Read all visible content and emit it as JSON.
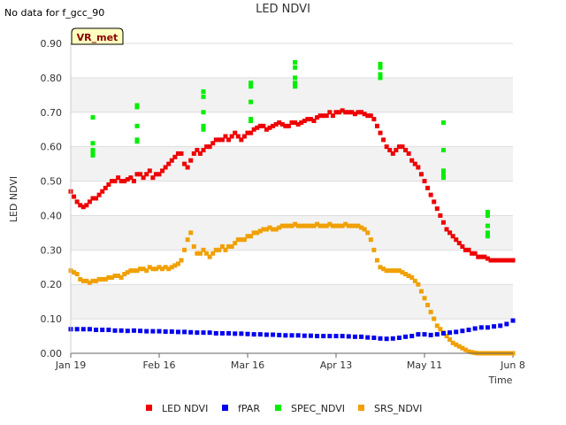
{
  "chart_data": {
    "type": "scatter",
    "title": "LED NDVI",
    "no_data_note": "No data for f_gcc_90",
    "badge": "VR_met",
    "xlabel": "Time",
    "ylabel": "LED NDVI",
    "xlim": [
      0,
      140
    ],
    "ylim": [
      0,
      0.9
    ],
    "x_ticks": [
      {
        "value": 0,
        "label": "Jan 19"
      },
      {
        "value": 28,
        "label": "Feb 16"
      },
      {
        "value": 56,
        "label": "Mar 16"
      },
      {
        "value": 84,
        "label": "Apr 13"
      },
      {
        "value": 112,
        "label": "May 11"
      },
      {
        "value": 140,
        "label": "Jun 8"
      }
    ],
    "y_ticks": [
      {
        "value": 0,
        "label": "0.00"
      },
      {
        "value": 0.1,
        "label": "0.10"
      },
      {
        "value": 0.2,
        "label": "0.20"
      },
      {
        "value": 0.3,
        "label": "0.30"
      },
      {
        "value": 0.4,
        "label": "0.40"
      },
      {
        "value": 0.5,
        "label": "0.50"
      },
      {
        "value": 0.6,
        "label": "0.60"
      },
      {
        "value": 0.7,
        "label": "0.70"
      },
      {
        "value": 0.8,
        "label": "0.80"
      },
      {
        "value": 0.9,
        "label": "0.90"
      }
    ],
    "series": [
      {
        "name": "LED NDVI",
        "color": "#ee0000",
        "x": [
          0,
          1,
          2,
          3,
          4,
          5,
          6,
          7,
          8,
          9,
          10,
          11,
          12,
          13,
          14,
          15,
          16,
          17,
          18,
          19,
          20,
          21,
          22,
          23,
          24,
          25,
          26,
          27,
          28,
          29,
          30,
          31,
          32,
          33,
          34,
          35,
          36,
          37,
          38,
          39,
          40,
          41,
          42,
          43,
          44,
          45,
          46,
          47,
          48,
          49,
          50,
          51,
          52,
          53,
          54,
          55,
          56,
          57,
          58,
          59,
          60,
          61,
          62,
          63,
          64,
          65,
          66,
          67,
          68,
          69,
          70,
          71,
          72,
          73,
          74,
          75,
          76,
          77,
          78,
          79,
          80,
          81,
          82,
          83,
          84,
          85,
          86,
          87,
          88,
          89,
          90,
          91,
          92,
          93,
          94,
          95,
          96,
          97,
          98,
          99,
          100,
          101,
          102,
          103,
          104,
          105,
          106,
          107,
          108,
          109,
          110,
          111,
          112,
          113,
          114,
          115,
          116,
          117,
          118,
          119,
          120,
          121,
          122,
          123,
          124,
          125,
          126,
          127,
          128,
          129,
          130,
          131,
          132,
          133,
          134,
          135,
          136,
          137,
          138,
          139,
          140
        ],
        "y": [
          0.47,
          0.455,
          0.44,
          0.43,
          0.425,
          0.43,
          0.44,
          0.45,
          0.45,
          0.46,
          0.47,
          0.48,
          0.49,
          0.5,
          0.5,
          0.51,
          0.5,
          0.5,
          0.505,
          0.51,
          0.5,
          0.52,
          0.52,
          0.51,
          0.52,
          0.53,
          0.51,
          0.52,
          0.52,
          0.53,
          0.54,
          0.55,
          0.56,
          0.57,
          0.58,
          0.58,
          0.55,
          0.54,
          0.56,
          0.58,
          0.59,
          0.58,
          0.59,
          0.6,
          0.6,
          0.61,
          0.62,
          0.62,
          0.62,
          0.63,
          0.62,
          0.63,
          0.64,
          0.63,
          0.62,
          0.63,
          0.64,
          0.64,
          0.65,
          0.655,
          0.66,
          0.66,
          0.65,
          0.655,
          0.66,
          0.665,
          0.67,
          0.665,
          0.66,
          0.66,
          0.67,
          0.67,
          0.665,
          0.67,
          0.675,
          0.68,
          0.68,
          0.675,
          0.685,
          0.69,
          0.69,
          0.69,
          0.7,
          0.69,
          0.7,
          0.7,
          0.705,
          0.7,
          0.7,
          0.7,
          0.695,
          0.7,
          0.7,
          0.695,
          0.69,
          0.69,
          0.68,
          0.66,
          0.64,
          0.62,
          0.6,
          0.59,
          0.58,
          0.59,
          0.6,
          0.6,
          0.59,
          0.58,
          0.56,
          0.55,
          0.54,
          0.52,
          0.5,
          0.48,
          0.46,
          0.44,
          0.42,
          0.4,
          0.38,
          0.36,
          0.35,
          0.34,
          0.33,
          0.32,
          0.31,
          0.3,
          0.3,
          0.29,
          0.29,
          0.28,
          0.28,
          0.28,
          0.275,
          0.27,
          0.27,
          0.27,
          0.27,
          0.27,
          0.27,
          0.27,
          0.27
        ]
      },
      {
        "name": "fPAR",
        "color": "#0000ee",
        "x": [
          0,
          2,
          4,
          6,
          8,
          10,
          12,
          14,
          16,
          18,
          20,
          22,
          24,
          26,
          28,
          30,
          32,
          34,
          36,
          38,
          40,
          42,
          44,
          46,
          48,
          50,
          52,
          54,
          56,
          58,
          60,
          62,
          64,
          66,
          68,
          70,
          72,
          74,
          76,
          78,
          80,
          82,
          84,
          86,
          88,
          90,
          92,
          94,
          96,
          98,
          100,
          102,
          104,
          106,
          108,
          110,
          112,
          114,
          116,
          118,
          120,
          122,
          124,
          126,
          128,
          130,
          132,
          134,
          136,
          138,
          140
        ],
        "y": [
          0.07,
          0.07,
          0.07,
          0.07,
          0.068,
          0.068,
          0.068,
          0.066,
          0.066,
          0.065,
          0.066,
          0.065,
          0.064,
          0.064,
          0.064,
          0.063,
          0.063,
          0.062,
          0.062,
          0.061,
          0.06,
          0.06,
          0.06,
          0.058,
          0.058,
          0.058,
          0.057,
          0.057,
          0.056,
          0.055,
          0.055,
          0.054,
          0.054,
          0.053,
          0.052,
          0.052,
          0.052,
          0.051,
          0.051,
          0.05,
          0.05,
          0.05,
          0.05,
          0.05,
          0.049,
          0.048,
          0.048,
          0.046,
          0.045,
          0.043,
          0.042,
          0.043,
          0.045,
          0.048,
          0.05,
          0.055,
          0.055,
          0.053,
          0.055,
          0.058,
          0.06,
          0.062,
          0.065,
          0.068,
          0.072,
          0.075,
          0.075,
          0.078,
          0.08,
          0.085,
          0.095
        ]
      },
      {
        "name": "SPEC_NDVI",
        "color": "#00ee00",
        "x": [
          7,
          7,
          7,
          7,
          7,
          21,
          21,
          21,
          21,
          21,
          42,
          42,
          42,
          42,
          42,
          57,
          57,
          57,
          57,
          57,
          71,
          71,
          71,
          71,
          71,
          98,
          98,
          98,
          98,
          98,
          118,
          118,
          118,
          118,
          118,
          132,
          132,
          132,
          132,
          132
        ],
        "y": [
          0.685,
          0.61,
          0.59,
          0.58,
          0.575,
          0.72,
          0.715,
          0.66,
          0.62,
          0.615,
          0.76,
          0.745,
          0.7,
          0.66,
          0.65,
          0.785,
          0.775,
          0.73,
          0.68,
          0.675,
          0.845,
          0.83,
          0.8,
          0.785,
          0.775,
          0.84,
          0.83,
          0.81,
          0.805,
          0.8,
          0.67,
          0.59,
          0.53,
          0.52,
          0.51,
          0.41,
          0.4,
          0.37,
          0.35,
          0.34
        ]
      },
      {
        "name": "SRS_NDVI",
        "color": "#f0a000",
        "x": [
          0,
          1,
          2,
          3,
          4,
          5,
          6,
          7,
          8,
          9,
          10,
          11,
          12,
          13,
          14,
          15,
          16,
          17,
          18,
          19,
          20,
          21,
          22,
          23,
          24,
          25,
          26,
          27,
          28,
          29,
          30,
          31,
          32,
          33,
          34,
          35,
          36,
          37,
          38,
          39,
          40,
          41,
          42,
          43,
          44,
          45,
          46,
          47,
          48,
          49,
          50,
          51,
          52,
          53,
          54,
          55,
          56,
          57,
          58,
          59,
          60,
          61,
          62,
          63,
          64,
          65,
          66,
          67,
          68,
          69,
          70,
          71,
          72,
          73,
          74,
          75,
          76,
          77,
          78,
          79,
          80,
          81,
          82,
          83,
          84,
          85,
          86,
          87,
          88,
          89,
          90,
          91,
          92,
          93,
          94,
          95,
          96,
          97,
          98,
          99,
          100,
          101,
          102,
          103,
          104,
          105,
          106,
          107,
          108,
          109,
          110,
          111,
          112,
          113,
          114,
          115,
          116,
          117,
          118,
          119,
          120,
          121,
          122,
          123,
          124,
          125,
          126,
          127,
          128,
          129,
          130,
          131,
          132,
          133,
          134,
          135,
          136,
          137,
          138,
          139,
          140
        ],
        "y": [
          0.24,
          0.235,
          0.23,
          0.215,
          0.21,
          0.21,
          0.205,
          0.21,
          0.21,
          0.215,
          0.215,
          0.215,
          0.22,
          0.22,
          0.225,
          0.225,
          0.22,
          0.23,
          0.235,
          0.24,
          0.24,
          0.24,
          0.245,
          0.245,
          0.24,
          0.25,
          0.245,
          0.245,
          0.25,
          0.245,
          0.25,
          0.245,
          0.25,
          0.255,
          0.26,
          0.27,
          0.3,
          0.33,
          0.35,
          0.31,
          0.29,
          0.29,
          0.3,
          0.29,
          0.28,
          0.29,
          0.3,
          0.3,
          0.31,
          0.3,
          0.31,
          0.31,
          0.32,
          0.33,
          0.33,
          0.33,
          0.34,
          0.34,
          0.35,
          0.35,
          0.355,
          0.36,
          0.36,
          0.365,
          0.36,
          0.36,
          0.365,
          0.37,
          0.37,
          0.37,
          0.37,
          0.375,
          0.37,
          0.37,
          0.37,
          0.37,
          0.37,
          0.37,
          0.375,
          0.37,
          0.37,
          0.37,
          0.375,
          0.37,
          0.37,
          0.37,
          0.37,
          0.375,
          0.37,
          0.37,
          0.37,
          0.37,
          0.365,
          0.36,
          0.35,
          0.33,
          0.3,
          0.27,
          0.25,
          0.245,
          0.24,
          0.24,
          0.24,
          0.24,
          0.24,
          0.235,
          0.23,
          0.225,
          0.22,
          0.21,
          0.2,
          0.18,
          0.16,
          0.14,
          0.12,
          0.1,
          0.08,
          0.07,
          0.06,
          0.05,
          0.04,
          0.03,
          0.025,
          0.02,
          0.015,
          0.01,
          0.005,
          0.003,
          0.001,
          0,
          0,
          0,
          0,
          0,
          0,
          0,
          0,
          0,
          0,
          0,
          0
        ]
      }
    ],
    "legend_position": "bottom"
  }
}
